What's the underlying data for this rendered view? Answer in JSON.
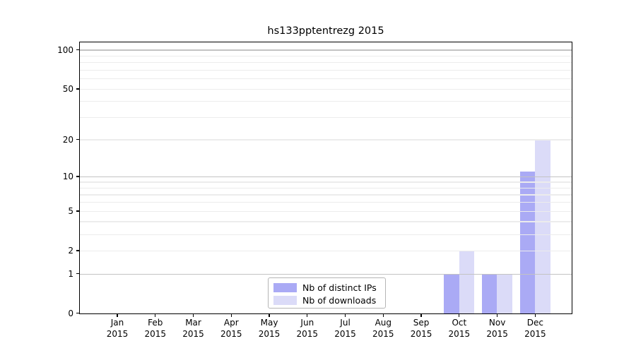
{
  "chart_data": {
    "type": "bar",
    "title": "hs133pptentrezg 2015",
    "categories": [
      "Jan",
      "Feb",
      "Mar",
      "Apr",
      "May",
      "Jun",
      "Jul",
      "Aug",
      "Sep",
      "Oct",
      "Nov",
      "Dec"
    ],
    "category_year": "2015",
    "series": [
      {
        "name": "Nb of distinct IPs",
        "color": "#aaaaf5",
        "values": [
          0,
          0,
          0,
          0,
          0,
          0,
          0,
          0,
          0,
          1,
          1,
          11
        ]
      },
      {
        "name": "Nb of downloads",
        "color": "#dbdbf8",
        "values": [
          0,
          0,
          0,
          0,
          0,
          0,
          0,
          0,
          0,
          2,
          1,
          20
        ]
      }
    ],
    "xlabel": "",
    "ylabel": "",
    "yscale": "log10(1+x)",
    "ylim": [
      0,
      114
    ],
    "ytick_labels": [
      0,
      1,
      2,
      5,
      10,
      20,
      50,
      100
    ],
    "grid": {
      "on": true,
      "major_lines": [
        1,
        10,
        100
      ],
      "minor_lines": [
        2,
        3,
        4,
        5,
        6,
        7,
        8,
        9,
        20,
        30,
        40,
        50,
        60,
        70,
        80,
        90
      ]
    },
    "legend_position": "lower center"
  },
  "colors": {
    "major_grid": "#c3c3c3",
    "minor_grid": "#ececec",
    "axis": "#000000",
    "text": "#000000",
    "legend_border": "#b5b5b5",
    "background": "#ffffff"
  }
}
